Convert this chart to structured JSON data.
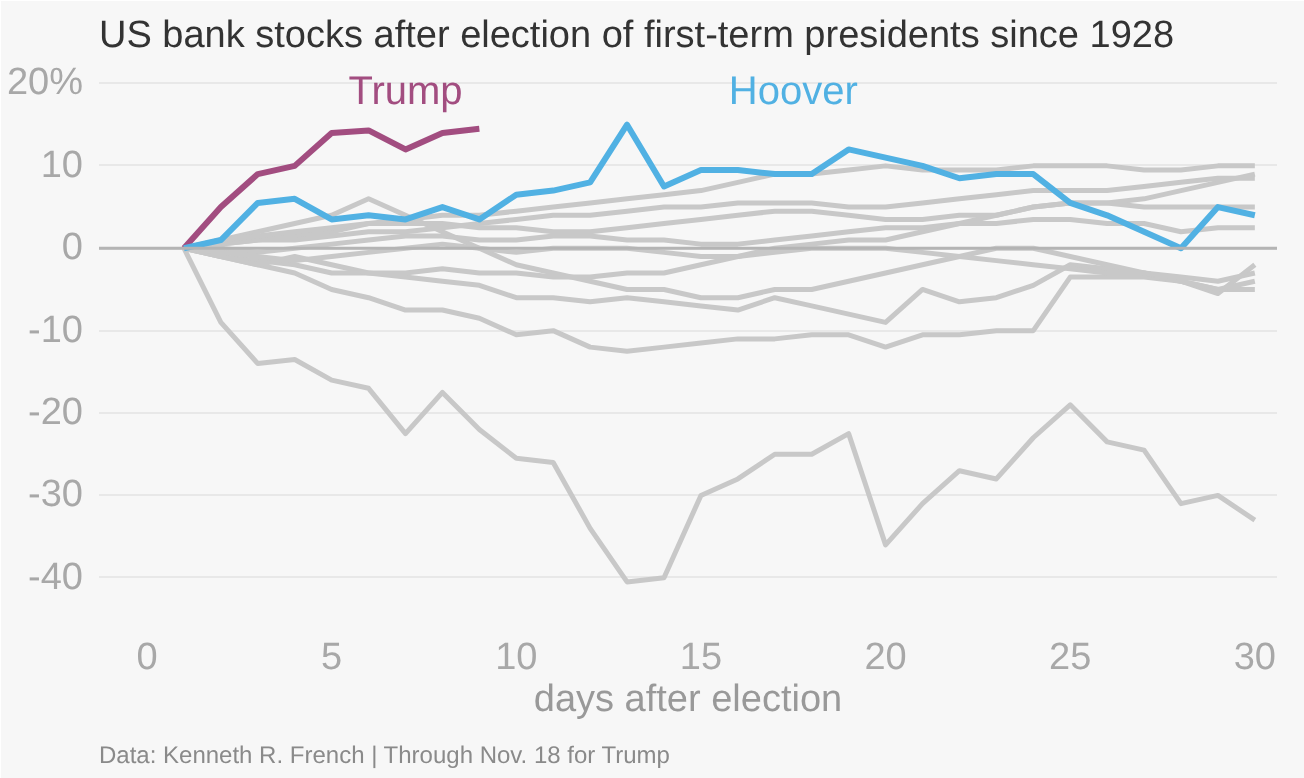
{
  "chart_data": {
    "type": "line",
    "title": "US bank stocks after election of first-term presidents since 1928",
    "xlabel": "days after election",
    "x": [
      1,
      2,
      3,
      4,
      5,
      6,
      7,
      8,
      9,
      10,
      11,
      12,
      13,
      14,
      15,
      16,
      17,
      18,
      19,
      20,
      21,
      22,
      23,
      24,
      25,
      26,
      27,
      28,
      29,
      30
    ],
    "series": [
      {
        "color": "#c8c8c8",
        "values": [
          0,
          -9,
          -14,
          -13.5,
          -16,
          -17,
          -22.5,
          -17.5,
          -22,
          -25.5,
          -26,
          -34,
          -40.5,
          -40,
          -30,
          -28,
          -25,
          -25,
          -22.5,
          -36,
          -31,
          -27,
          -28,
          -23,
          -19,
          -23.5,
          -24.5,
          -31,
          -30,
          -33
        ]
      },
      {
        "color": "#c8c8c8",
        "values": [
          0,
          -1,
          -2,
          -3,
          -5,
          -6,
          -7.5,
          -7.5,
          -8.5,
          -10.5,
          -10,
          -12,
          -12.5,
          -12,
          -11.5,
          -11,
          -11,
          -10.5,
          -10.5,
          -12,
          -10.5,
          -10.5,
          -10,
          -10,
          -3.5,
          -3.5,
          -3.5,
          -4,
          -5,
          -5
        ]
      },
      {
        "color": "#c8c8c8",
        "values": [
          0,
          -1,
          -1.5,
          -2,
          -3,
          -3,
          -3.5,
          -4,
          -4.5,
          -6,
          -6,
          -6.5,
          -6,
          -6.5,
          -7,
          -7.5,
          -6,
          -7,
          -8,
          -9,
          -5,
          -6.5,
          -6,
          -4.5,
          -2,
          -2.5,
          -3,
          -4,
          -5.5,
          -2
        ]
      },
      {
        "color": "#c8c8c8",
        "values": [
          0,
          1,
          2,
          3,
          4,
          6,
          4,
          2,
          0,
          -2,
          -3,
          -4,
          -5,
          -5,
          -6,
          -6,
          -5,
          -5,
          -4,
          -3,
          -2,
          -1,
          0,
          0,
          -1,
          -2,
          -3,
          -4,
          -5,
          -4
        ]
      },
      {
        "color": "#c8c8c8",
        "values": [
          0,
          -1,
          -2,
          -1,
          -2,
          -3,
          -3,
          -2.5,
          -3,
          -3,
          -3.5,
          -3.5,
          -3,
          -3,
          -2,
          -1,
          0,
          0.5,
          1,
          1,
          2,
          3,
          4,
          5,
          5.5,
          5.5,
          6,
          7,
          8,
          9
        ]
      },
      {
        "color": "#c8c8c8",
        "values": [
          0,
          0.5,
          1,
          1.5,
          2,
          3,
          3.5,
          4,
          4,
          4.5,
          5,
          5.5,
          6,
          6.5,
          7,
          8,
          9,
          9,
          9.5,
          10,
          9.5,
          9.5,
          9.5,
          10,
          10,
          10,
          9.5,
          9.5,
          10,
          10
        ]
      },
      {
        "color": "#c8c8c8",
        "values": [
          0,
          0.5,
          1,
          1,
          1.5,
          2,
          2,
          2.5,
          3,
          3.5,
          4,
          4,
          4.5,
          5,
          5,
          5.5,
          5.5,
          5.5,
          5,
          5,
          5.5,
          6,
          6.5,
          7,
          7,
          7,
          7.5,
          8,
          8.5,
          8.5
        ]
      },
      {
        "color": "#c8c8c8",
        "values": [
          0,
          1,
          1.5,
          2,
          2.5,
          3,
          3,
          3,
          2.5,
          2.5,
          2,
          2,
          2.5,
          3,
          3.5,
          4,
          4.5,
          4.5,
          4,
          3.5,
          3.5,
          4,
          4,
          5,
          5.5,
          5.5,
          5,
          5,
          5,
          5
        ]
      },
      {
        "color": "#c8c8c8",
        "values": [
          0,
          0,
          -0.5,
          0,
          0.5,
          1,
          1.5,
          1.5,
          1,
          1,
          1.5,
          1.5,
          1,
          1,
          0.5,
          0.5,
          1,
          1.5,
          2,
          2.5,
          2.5,
          3,
          3,
          3.5,
          3.5,
          3,
          3,
          2,
          2.5,
          2.5
        ]
      },
      {
        "color": "#c8c8c8",
        "values": [
          0,
          -0.5,
          -1,
          -1.5,
          -1,
          -0.5,
          0,
          0.5,
          0,
          -0.5,
          0,
          0,
          0,
          -0.5,
          -1,
          -1,
          -0.5,
          0,
          0,
          0,
          -0.5,
          -1,
          -1.5,
          -2,
          -2.5,
          -3,
          -3,
          -3.5,
          -4,
          -3
        ]
      },
      {
        "name": "Trump",
        "color": "#a24d80",
        "x": [
          1,
          2,
          3,
          4,
          5,
          6,
          7,
          8,
          9
        ],
        "values": [
          0,
          5,
          9,
          10,
          14,
          14.3,
          12,
          14,
          14.5
        ]
      },
      {
        "name": "Hoover",
        "color": "#51b1e3",
        "values": [
          0,
          1,
          5.5,
          6,
          3.5,
          4,
          3.5,
          5,
          3.5,
          6.5,
          7,
          8,
          15,
          7.5,
          9.5,
          9.5,
          9,
          9,
          12,
          11,
          10,
          8.5,
          9,
          9,
          5.5,
          4,
          2,
          0,
          5,
          4
        ]
      }
    ],
    "xlim": [
      -1.3,
      30.6
    ],
    "ylim": [
      -45,
      22
    ],
    "xticks": [
      0,
      5,
      10,
      15,
      20,
      25,
      30
    ],
    "yticks": [
      {
        "value": 20,
        "label": "20%"
      },
      10,
      0,
      -10,
      -20,
      -30,
      -40
    ],
    "grid": "y",
    "ref_lines": [
      {
        "axis": "y",
        "value": 0,
        "color": "#b4b4b4"
      }
    ],
    "annotations": [
      "Data: Kenneth R. French | Through Nov. 18 for Trump"
    ]
  }
}
